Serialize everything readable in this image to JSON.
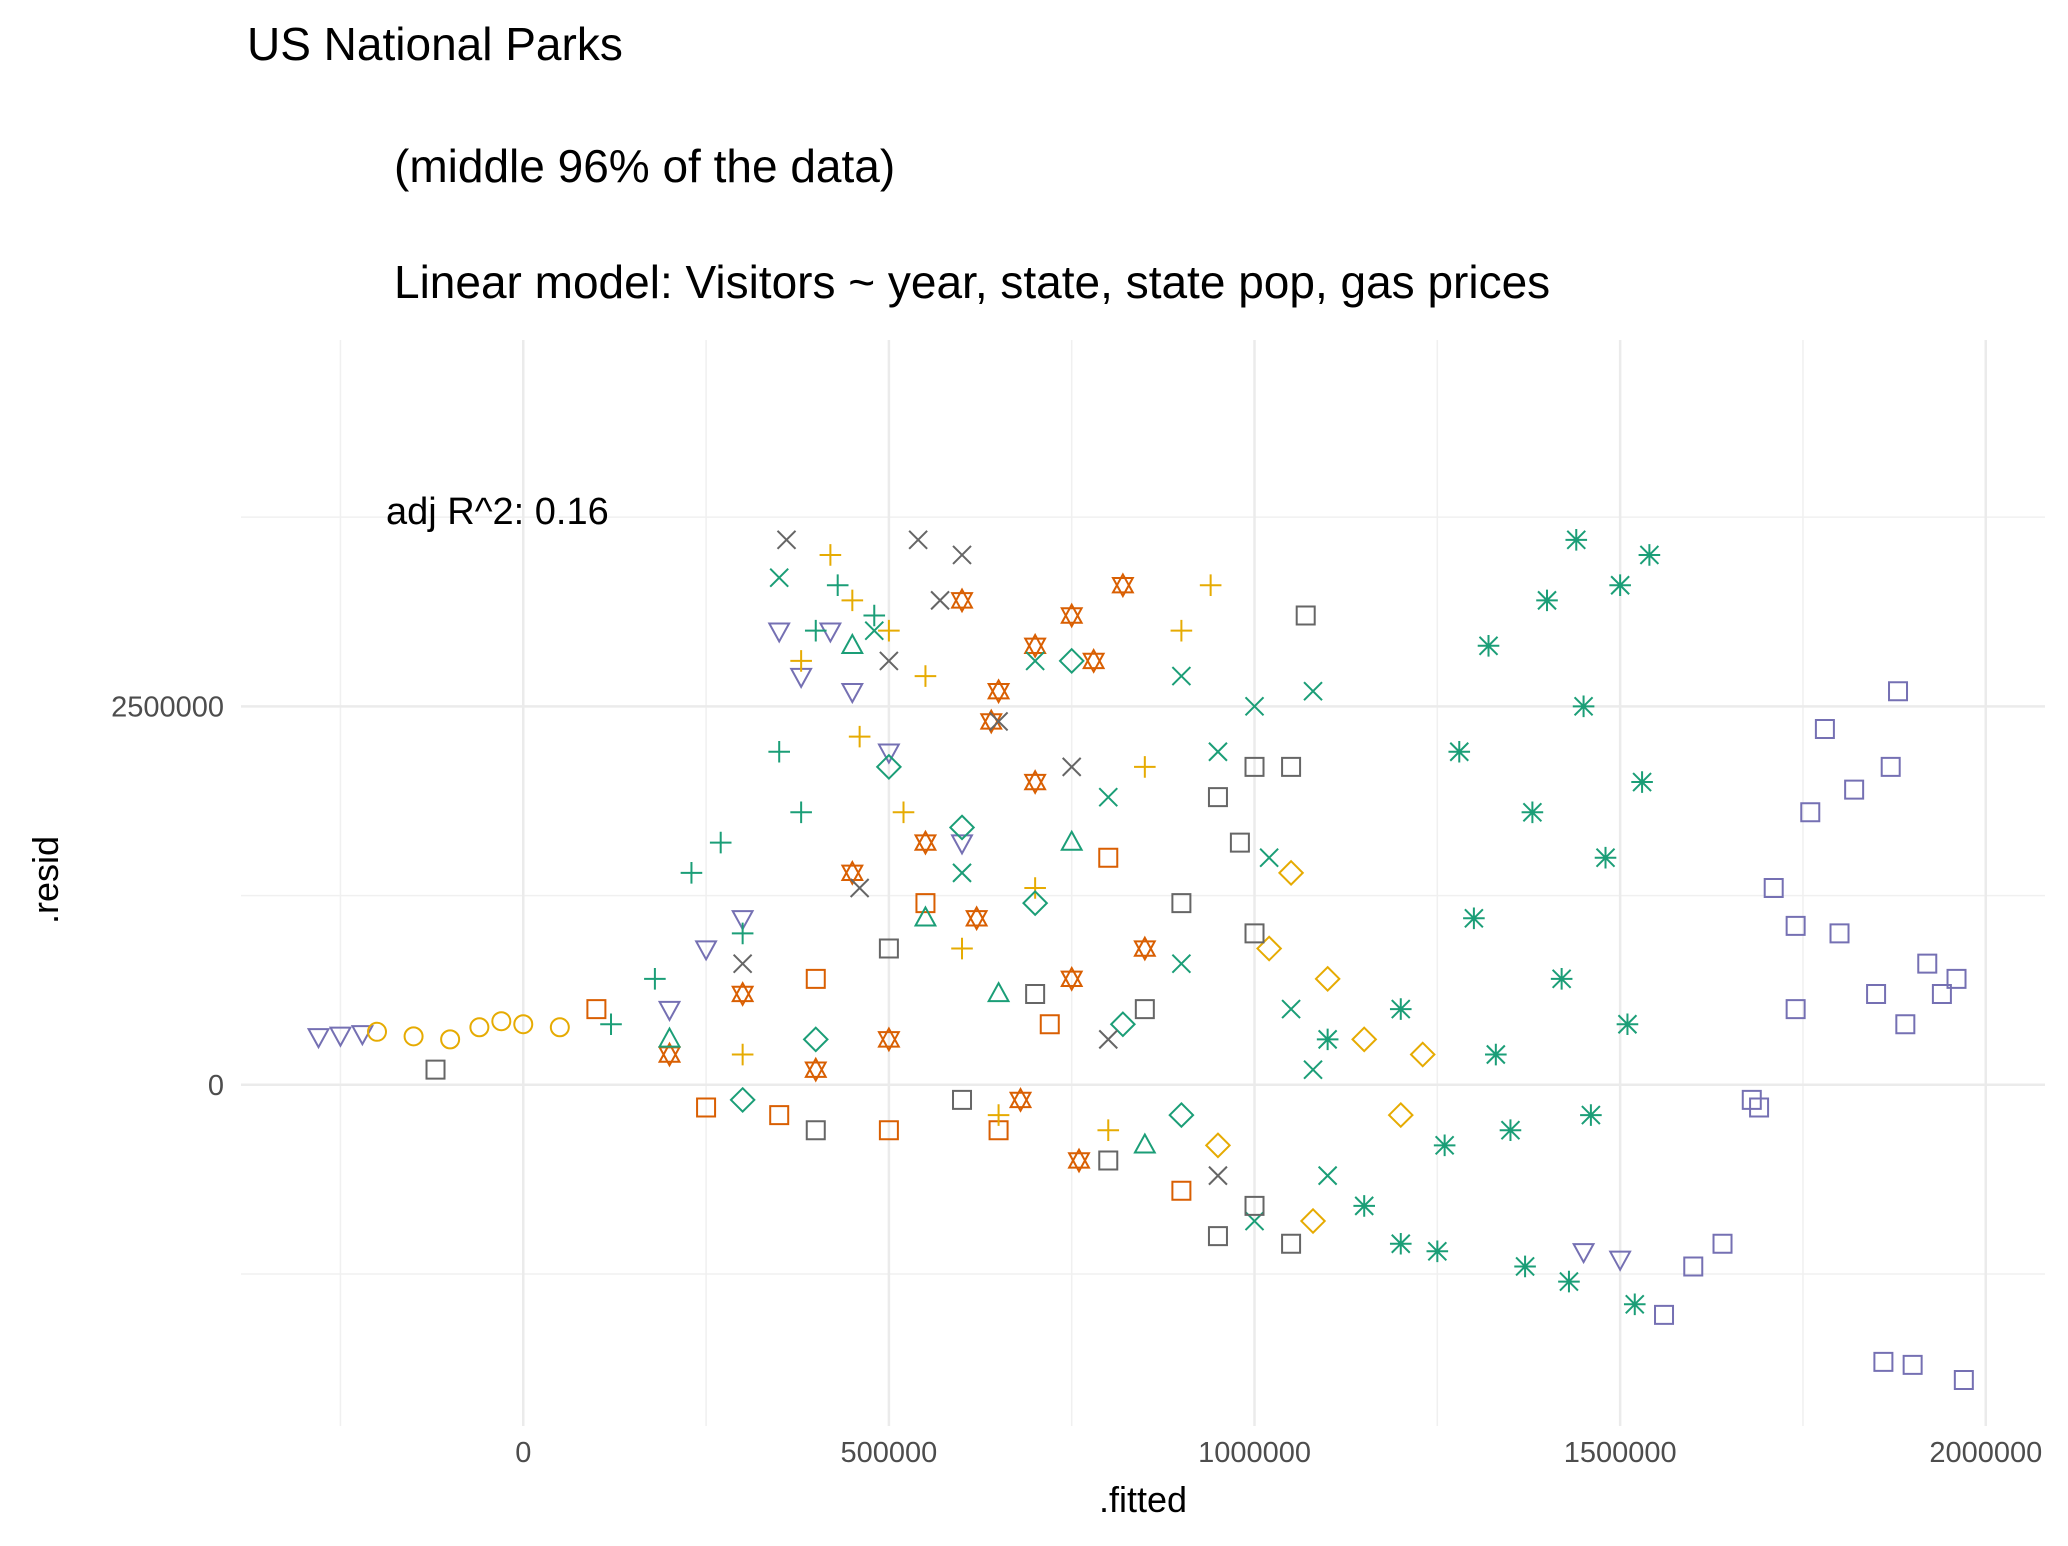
{
  "chart_data": {
    "type": "scatter",
    "title": "US National Parks",
    "subtitle": [
      "(middle 96% of the data)",
      "Linear model: Visitors ~ year, state, state pop, gas prices"
    ],
    "annotation": "adj R^2: 0.16",
    "x_label": ".fitted",
    "y_label": ".resid",
    "xlim": [
      -386000,
      2081000
    ],
    "ylim": [
      -2254000,
      4920000
    ],
    "xticks": [
      0,
      500000,
      1000000,
      1500000,
      2000000
    ],
    "yticks": [
      0,
      2500000
    ],
    "xminor": [
      -250000,
      250000,
      750000,
      1250000,
      1750000
    ],
    "yminor": [
      -1250000,
      1250000,
      3750000
    ],
    "grid": true,
    "series": [
      {
        "color": "#1B9E77",
        "shape": "asterisk",
        "x": [
          1100000,
          1150000,
          1200000,
          1250000,
          1280000,
          1300000,
          1320000,
          1350000,
          1380000,
          1400000,
          1420000,
          1430000,
          1450000,
          1460000,
          1480000,
          1500000,
          1510000,
          1520000,
          1530000,
          1540000,
          1260000,
          1330000,
          1440000,
          1370000,
          1200000
        ],
        "values": [
          300000,
          -800000,
          500000,
          -1100000,
          2200000,
          1100000,
          2900000,
          -300000,
          1800000,
          3200000,
          700000,
          -1300000,
          2500000,
          -200000,
          1500000,
          3300000,
          400000,
          -1450000,
          2000000,
          3500000,
          -400000,
          200000,
          3600000,
          -1200000,
          -1050000
        ]
      },
      {
        "color": "#7570B3",
        "shape": "square",
        "x": [
          1560000,
          1600000,
          1640000,
          1680000,
          1710000,
          1740000,
          1760000,
          1780000,
          1800000,
          1820000,
          1850000,
          1860000,
          1870000,
          1880000,
          1890000,
          1900000,
          1920000,
          1940000,
          1960000,
          1970000,
          1740000,
          1690000
        ],
        "values": [
          -1520000,
          -1200000,
          -1050000,
          -100000,
          1300000,
          500000,
          1800000,
          2350000,
          1000000,
          1950000,
          600000,
          -1830000,
          2100000,
          2600000,
          400000,
          -1850000,
          800000,
          600000,
          700000,
          -1950000,
          1050000,
          -150000
        ]
      },
      {
        "color": "#7570B3",
        "shape": "triangle-down",
        "x": [
          -280000,
          -250000,
          -220000,
          350000,
          420000,
          380000,
          450000,
          300000,
          250000,
          500000,
          1450000,
          1500000,
          200000,
          600000
        ],
        "values": [
          320000,
          330000,
          340000,
          3000000,
          3000000,
          2700000,
          2600000,
          1100000,
          900000,
          2200000,
          -1100000,
          -1150000,
          500000,
          1600000
        ]
      },
      {
        "color": "#D95F02",
        "shape": "star",
        "x": [
          600000,
          650000,
          700000,
          750000,
          780000,
          820000,
          640000,
          700000,
          550000,
          450000,
          620000,
          750000,
          500000,
          400000,
          850000,
          300000,
          200000,
          680000,
          760000
        ],
        "values": [
          3200000,
          2600000,
          2900000,
          3100000,
          2800000,
          3300000,
          2400000,
          2000000,
          1600000,
          1400000,
          1100000,
          700000,
          300000,
          100000,
          900000,
          600000,
          200000,
          -100000,
          -500000
        ]
      },
      {
        "color": "#D95F02",
        "shape": "square",
        "x": [
          100000,
          250000,
          400000,
          550000,
          650000,
          800000,
          900000,
          350000,
          500000,
          720000
        ],
        "values": [
          500000,
          -150000,
          700000,
          1200000,
          -300000,
          1500000,
          -700000,
          -200000,
          -300000,
          400000
        ]
      },
      {
        "color": "#E6AB02",
        "shape": "plus",
        "x": [
          420000,
          450000,
          500000,
          380000,
          460000,
          520000,
          550000,
          600000,
          700000,
          300000,
          850000,
          900000,
          940000,
          650000,
          800000
        ],
        "values": [
          3500000,
          3200000,
          3000000,
          2800000,
          2300000,
          1800000,
          2700000,
          900000,
          1300000,
          200000,
          2100000,
          3000000,
          3300000,
          -200000,
          -300000
        ]
      },
      {
        "color": "#E6AB02",
        "shape": "circle",
        "x": [
          -200000,
          -150000,
          -100000,
          -30000,
          0,
          50000,
          -60000
        ],
        "values": [
          350000,
          320000,
          300000,
          420000,
          400000,
          380000,
          380000
        ]
      },
      {
        "color": "#E6AB02",
        "shape": "diamond",
        "x": [
          1050000,
          1100000,
          1150000,
          1200000,
          1080000,
          950000,
          1020000,
          1230000
        ],
        "values": [
          1400000,
          700000,
          300000,
          -200000,
          -900000,
          -400000,
          900000,
          200000
        ]
      },
      {
        "color": "#1B9E77",
        "shape": "cross",
        "x": [
          350000,
          480000,
          700000,
          900000,
          950000,
          1000000,
          1080000,
          1020000,
          1050000,
          1080000,
          1100000,
          900000,
          800000,
          600000,
          1000000
        ],
        "values": [
          3350000,
          3000000,
          2800000,
          2700000,
          2200000,
          2500000,
          2600000,
          1500000,
          500000,
          100000,
          -600000,
          800000,
          1900000,
          1400000,
          -900000
        ]
      },
      {
        "color": "#1B9E77",
        "shape": "plus",
        "x": [
          230000,
          270000,
          350000,
          400000,
          430000,
          480000,
          180000,
          120000,
          300000,
          380000
        ],
        "values": [
          1400000,
          1600000,
          2200000,
          3000000,
          3300000,
          3100000,
          700000,
          400000,
          1000000,
          1800000
        ]
      },
      {
        "color": "#1B9E77",
        "shape": "diamond",
        "x": [
          500000,
          600000,
          700000,
          750000,
          400000,
          820000,
          300000,
          900000
        ],
        "values": [
          2100000,
          1700000,
          1200000,
          2800000,
          300000,
          400000,
          -100000,
          -200000
        ]
      },
      {
        "color": "#1B9E77",
        "shape": "triangle",
        "x": [
          450000,
          550000,
          650000,
          750000,
          200000,
          850000
        ],
        "values": [
          2900000,
          1100000,
          600000,
          1600000,
          300000,
          -400000
        ]
      },
      {
        "color": "#666666",
        "shape": "cross",
        "x": [
          360000,
          540000,
          600000,
          570000,
          500000,
          650000,
          750000,
          460000,
          300000,
          800000,
          950000
        ],
        "values": [
          3600000,
          3600000,
          3500000,
          3200000,
          2800000,
          2400000,
          2100000,
          1300000,
          800000,
          300000,
          -600000
        ]
      },
      {
        "color": "#666666",
        "shape": "square",
        "x": [
          950000,
          1000000,
          1050000,
          980000,
          1000000,
          900000,
          850000,
          700000,
          600000,
          1000000,
          1050000,
          950000,
          1070000,
          800000,
          500000,
          400000,
          -120000
        ],
        "values": [
          1900000,
          2100000,
          2100000,
          1600000,
          1000000,
          1200000,
          500000,
          600000,
          -100000,
          -800000,
          -1050000,
          -1000000,
          3100000,
          -500000,
          900000,
          -300000,
          100000
        ]
      }
    ]
  }
}
